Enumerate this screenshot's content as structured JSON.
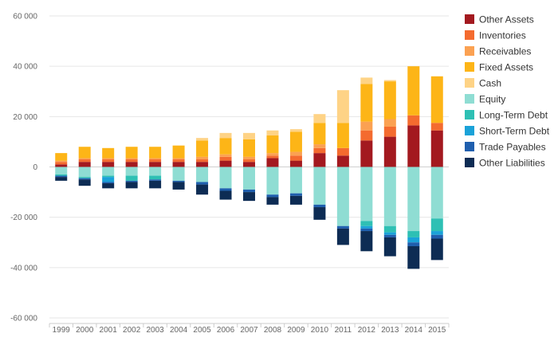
{
  "chart_data": {
    "type": "bar",
    "stacked": true,
    "title": "",
    "xlabel": "",
    "ylabel": "",
    "ylim": [
      -60000,
      60000
    ],
    "yticks": [
      60000,
      40000,
      20000,
      0,
      -20000,
      -40000,
      -60000
    ],
    "ytick_labels": [
      "60 000",
      "40 000",
      "20 000",
      "0",
      "-20 000",
      "-40 000",
      "-60 000"
    ],
    "grid": true,
    "legend_position": "right",
    "categories": [
      "1999",
      "2000",
      "2001",
      "2002",
      "2003",
      "2004",
      "2005",
      "2006",
      "2007",
      "2008",
      "2009",
      "2010",
      "2011",
      "2012",
      "2013",
      "2014",
      "2015"
    ],
    "series": [
      {
        "name": "Other Assets",
        "group": "assets",
        "color": "#a3191f",
        "values": [
          1000,
          2000,
          2000,
          2000,
          2000,
          2000,
          2000,
          2500,
          2000,
          3500,
          2500,
          5500,
          4500,
          10500,
          12000,
          16500,
          14500
        ]
      },
      {
        "name": "Inventories",
        "group": "assets",
        "color": "#f46b2f",
        "values": [
          1000,
          1000,
          1000,
          1000,
          1000,
          1000,
          1000,
          1500,
          1000,
          1000,
          2000,
          2000,
          3000,
          4000,
          4000,
          4000,
          3000
        ]
      },
      {
        "name": "Receivables",
        "group": "assets",
        "color": "#fba152",
        "values": [
          500,
          500,
          500,
          500,
          500,
          500,
          1000,
          1000,
          1000,
          1000,
          1500,
          1500,
          0,
          3500,
          3000,
          0,
          0
        ]
      },
      {
        "name": "Fixed Assets",
        "group": "assets",
        "color": "#fdb517",
        "values": [
          3000,
          4500,
          4000,
          4500,
          4500,
          5000,
          6500,
          6500,
          7000,
          7000,
          8000,
          8500,
          10000,
          15000,
          15000,
          19500,
          18500
        ]
      },
      {
        "name": "Cash",
        "group": "assets",
        "color": "#fed386",
        "values": [
          0,
          0,
          0,
          0,
          0,
          0,
          1000,
          2000,
          2500,
          2000,
          1000,
          3500,
          13000,
          2500,
          500,
          0,
          0
        ]
      },
      {
        "name": "Equity",
        "group": "liabilities",
        "color": "#8fddd3",
        "values": [
          3000,
          4000,
          3500,
          3500,
          3500,
          5500,
          6000,
          8500,
          9000,
          11000,
          10500,
          15000,
          23500,
          21500,
          23500,
          25500,
          20500
        ]
      },
      {
        "name": "Long-Term Debt",
        "group": "liabilities",
        "color": "#2ec0b4",
        "values": [
          500,
          500,
          500,
          2000,
          1500,
          0,
          0,
          0,
          0,
          0,
          0,
          0,
          0,
          2000,
          2500,
          2500,
          5000
        ]
      },
      {
        "name": "Short-Term Debt",
        "group": "liabilities",
        "color": "#1aa2d8",
        "values": [
          0,
          0,
          2000,
          0,
          0,
          0,
          0,
          0,
          0,
          0,
          0,
          0,
          0,
          1000,
          1000,
          2000,
          1500
        ]
      },
      {
        "name": "Trade Payables",
        "group": "liabilities",
        "color": "#1f5fae",
        "values": [
          500,
          500,
          500,
          500,
          500,
          500,
          1000,
          1000,
          1000,
          1000,
          1000,
          1000,
          1000,
          1000,
          1000,
          1500,
          1500
        ]
      },
      {
        "name": "Other Liabilities",
        "group": "liabilities",
        "color": "#0d2c54",
        "values": [
          1500,
          2500,
          2000,
          2500,
          3000,
          3000,
          4000,
          3500,
          3500,
          3000,
          3500,
          5000,
          6500,
          8000,
          7500,
          9000,
          8500
        ]
      }
    ]
  }
}
